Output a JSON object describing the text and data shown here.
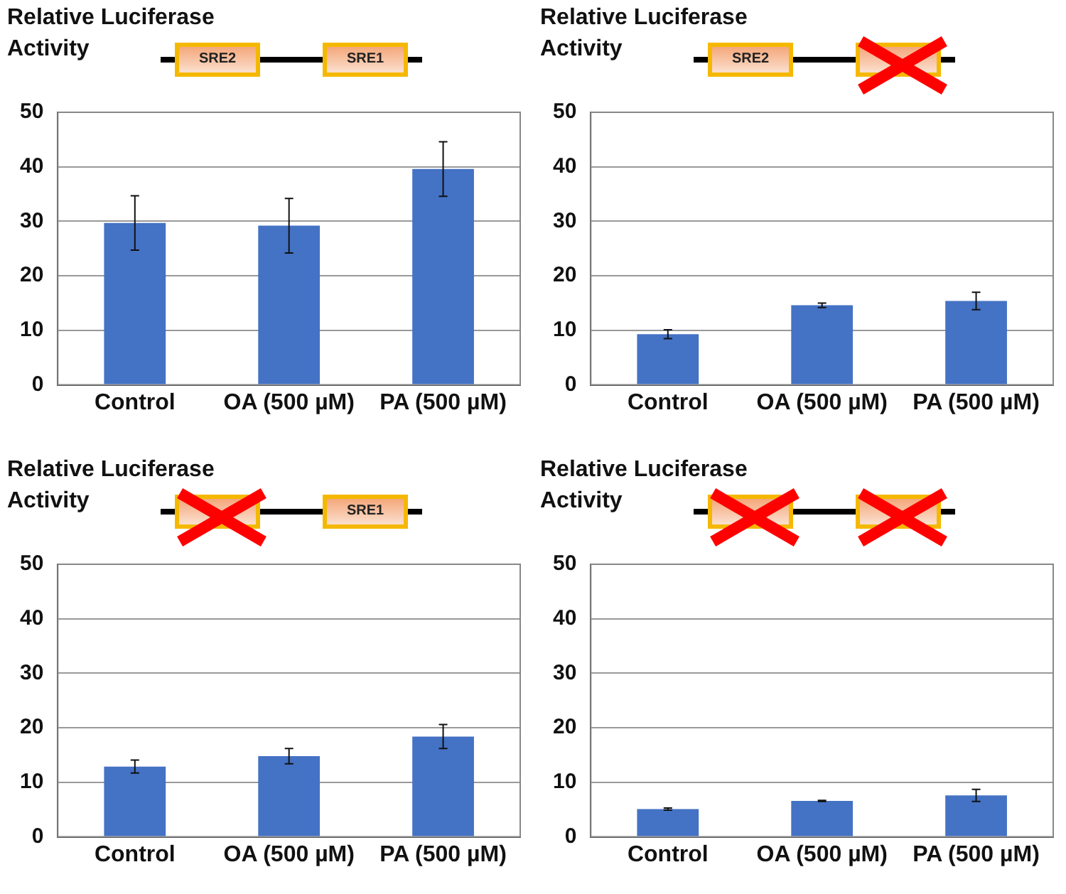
{
  "chart_data": [
    {
      "type": "bar",
      "ylabel": "Relative Luciferase Activity",
      "annotations": [
        "SRE2",
        "SRE1"
      ],
      "categories": [
        "Control",
        "OA (500 µM)",
        "PA (500 µM)"
      ],
      "values": [
        29.7,
        29.2,
        39.6
      ],
      "errors": [
        5,
        5,
        5
      ],
      "color": "#4472c4",
      "ylim": [
        0,
        50
      ],
      "yticks": [
        0,
        10,
        20,
        30,
        40,
        50
      ],
      "grid": "y"
    },
    {
      "type": "bar",
      "ylabel": "Relative Luciferase Activity",
      "annotations": [
        "SRE2",
        null
      ],
      "categories": [
        "Control",
        "OA (500 µM)",
        "PA (500 µM)"
      ],
      "values": [
        9.3,
        14.6,
        15.4
      ],
      "errors": [
        0.8,
        0.4,
        1.6
      ],
      "color": "#4472c4",
      "ylim": [
        0,
        50
      ],
      "yticks": [
        0,
        10,
        20,
        30,
        40,
        50
      ],
      "grid": "y"
    },
    {
      "type": "bar",
      "ylabel": "Relative Luciferase Activity",
      "annotations": [
        null,
        "SRE1"
      ],
      "categories": [
        "Control",
        "OA (500 µM)",
        "PA (500 µM)"
      ],
      "values": [
        12.9,
        14.8,
        18.4
      ],
      "errors": [
        1.2,
        1.4,
        2.2
      ],
      "color": "#4472c4",
      "ylim": [
        0,
        50
      ],
      "yticks": [
        0,
        10,
        20,
        30,
        40,
        50
      ],
      "grid": "y"
    },
    {
      "type": "bar",
      "ylabel": "Relative Luciferase Activity",
      "annotations": [
        null,
        null
      ],
      "categories": [
        "Control",
        "OA (500 µM)",
        "PA (500 µM)"
      ],
      "values": [
        5.1,
        6.6,
        7.6
      ],
      "errors": [
        0.2,
        0.1,
        1.1
      ],
      "color": "#4472c4",
      "ylim": [
        0,
        50
      ],
      "yticks": [
        0,
        10,
        20,
        30,
        40,
        50
      ],
      "grid": "y"
    }
  ]
}
